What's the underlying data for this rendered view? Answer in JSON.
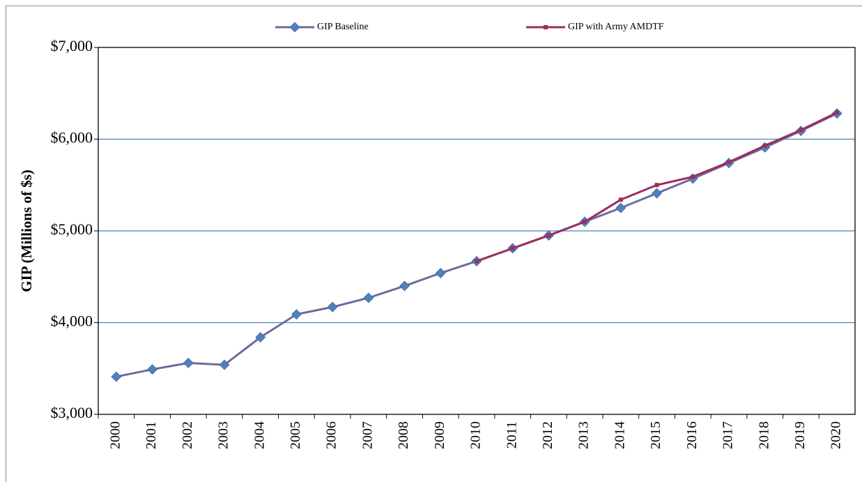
{
  "chart_data": {
    "type": "line",
    "y_label": "GIP (Millions of $s)",
    "categories": [
      "2000",
      "2001",
      "2002",
      "2003",
      "2004",
      "2005",
      "2006",
      "2007",
      "2008",
      "2009",
      "2010",
      "2011",
      "2012",
      "2013",
      "2014",
      "2015",
      "2016",
      "2017",
      "2018",
      "2019",
      "2020"
    ],
    "series": [
      {
        "name": "GIP Baseline",
        "color": "#6b6b9e",
        "marker_color": "#4f81bd",
        "marker": "diamond",
        "values": [
          3410,
          3490,
          3560,
          3540,
          3840,
          4090,
          4170,
          4270,
          4400,
          4540,
          4670,
          4810,
          4950,
          5100,
          5250,
          5410,
          5570,
          5740,
          5910,
          6090,
          6280
        ]
      },
      {
        "name": "GIP with Army AMDTF",
        "color": "#9b2d5f",
        "marker_color": "#9b2d5f",
        "marker": "square",
        "values": [
          null,
          null,
          null,
          null,
          null,
          null,
          null,
          null,
          null,
          null,
          4670,
          4810,
          4950,
          5100,
          5340,
          5500,
          5590,
          5750,
          5930,
          6100,
          6290
        ]
      }
    ],
    "ylim": [
      3000,
      7000
    ],
    "yticks": [
      {
        "value": 3000,
        "label": "$3,000"
      },
      {
        "value": 4000,
        "label": "$4,000"
      },
      {
        "value": 5000,
        "label": "$5,000"
      },
      {
        "value": 6000,
        "label": "$6,000"
      },
      {
        "value": 7000,
        "label": "$7,000"
      }
    ],
    "grid": true,
    "legend": "top"
  }
}
